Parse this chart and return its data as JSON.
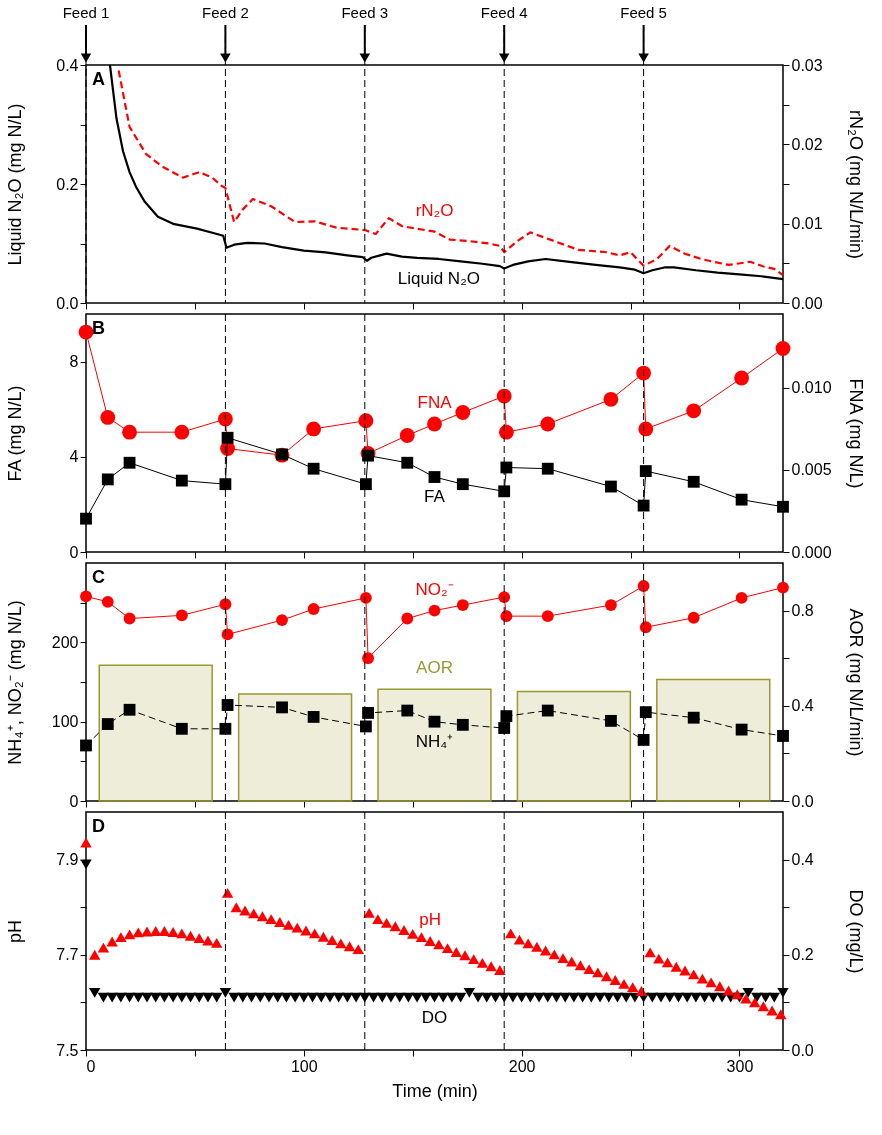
{
  "chart_data": [
    {
      "type": "line",
      "xlim": [
        0,
        320
      ],
      "xticks": [
        0,
        {
          "value": 50,
          "label": null
        },
        100,
        {
          "value": 150,
          "label": null
        },
        200,
        {
          "value": 250,
          "label": null
        },
        300
      ],
      "ylim": [
        0,
        0.4
      ],
      "yticks": [
        {
          "value": 0,
          "label": "0.0"
        },
        {
          "value": 0.1,
          "label": null
        },
        0.2,
        {
          "value": 0.3,
          "label": null
        },
        0.4
      ],
      "y2lim": [
        0,
        0.03
      ],
      "y2ticks": [
        {
          "value": 0,
          "label": "0.00"
        },
        {
          "value": 0.005,
          "label": null
        },
        0.01,
        {
          "value": 0.015,
          "label": null
        },
        0.02,
        {
          "value": 0.025,
          "label": null
        },
        0.03
      ],
      "ylabel": "Liquid N₂O (mg N/L)",
      "y2label": "rN₂O (mg N/L/min)",
      "tick_labels": "y",
      "grid": false,
      "series": [
        {
          "name": "Liquid N₂O",
          "color": "#000000",
          "line_style": "solid",
          "marker": "none",
          "x": [
            11,
            14,
            17,
            20,
            23,
            27,
            33,
            40,
            51,
            58,
            63,
            64.5,
            68,
            74,
            82,
            90,
            100,
            110,
            120,
            127,
            129,
            131,
            135,
            138,
            145,
            152,
            162,
            172,
            182,
            190,
            192,
            196,
            203,
            211,
            222,
            234,
            245,
            252,
            256,
            260,
            266,
            270,
            280,
            290,
            300,
            310,
            320
          ],
          "values": [
            0.4,
            0.31,
            0.255,
            0.22,
            0.195,
            0.17,
            0.145,
            0.133,
            0.125,
            0.118,
            0.113,
            0.093,
            0.098,
            0.101,
            0.1,
            0.094,
            0.088,
            0.085,
            0.08,
            0.077,
            0.071,
            0.076,
            0.08,
            0.083,
            0.078,
            0.076,
            0.074,
            0.07,
            0.066,
            0.062,
            0.058,
            0.064,
            0.07,
            0.074,
            0.069,
            0.064,
            0.06,
            0.056,
            0.05,
            0.055,
            0.06,
            0.06,
            0.055,
            0.051,
            0.048,
            0.045,
            0.04
          ]
        },
        {
          "name": "rN₂O",
          "axis": "y2",
          "color": "#ff0000",
          "line_style": "dashed",
          "marker": "none",
          "x": [
            15,
            20,
            27.5,
            35,
            44.5,
            52,
            58,
            62,
            64,
            68,
            72,
            76.6,
            85,
            96,
            105,
            115,
            128,
            133,
            139,
            145,
            151,
            160,
            167,
            176,
            185,
            190,
            192,
            198,
            204,
            215,
            226,
            239,
            245,
            250,
            256,
            262,
            268,
            275,
            283,
            295,
            305,
            311,
            316,
            320
          ],
          "values": [
            0.0293,
            0.0222,
            0.0188,
            0.0172,
            0.0158,
            0.0165,
            0.0158,
            0.0148,
            0.0145,
            0.0102,
            0.0118,
            0.0131,
            0.0122,
            0.0102,
            0.0103,
            0.0095,
            0.0092,
            0.0087,
            0.0107,
            0.0097,
            0.0094,
            0.009,
            0.008,
            0.0078,
            0.0075,
            0.0072,
            0.0064,
            0.0078,
            0.0089,
            0.0078,
            0.0067,
            0.0064,
            0.006,
            0.0064,
            0.0047,
            0.0055,
            0.0072,
            0.0062,
            0.0055,
            0.0048,
            0.0052,
            0.0046,
            0.0043,
            0.0035
          ]
        }
      ],
      "ref_lines": [
        {
          "axis": "x",
          "value": 0,
          "label": "Feed 1",
          "color": "#000000",
          "line_style": "dashed"
        },
        {
          "axis": "x",
          "value": 64,
          "label": "Feed 2",
          "color": "#000000",
          "line_style": "dashed"
        },
        {
          "axis": "x",
          "value": 128,
          "label": "Feed 3",
          "color": "#000000",
          "line_style": "dashed"
        },
        {
          "axis": "x",
          "value": 192,
          "label": "Feed 4",
          "color": "#000000",
          "line_style": "dashed"
        },
        {
          "axis": "x",
          "value": 256,
          "label": "Feed 5",
          "color": "#000000",
          "line_style": "dashed"
        }
      ],
      "annotations": [
        "A"
      ]
    },
    {
      "type": "line",
      "xlim": [
        0,
        320
      ],
      "xticks": [
        0,
        {
          "value": 50,
          "label": null
        },
        100,
        {
          "value": 150,
          "label": null
        },
        200,
        {
          "value": 250,
          "label": null
        },
        300
      ],
      "ylim": [
        0,
        10
      ],
      "yticks": [
        0,
        4,
        8
      ],
      "y2lim": [
        0,
        0.0145
      ],
      "y2ticks": [
        {
          "value": 0,
          "label": "0.000"
        },
        0.005,
        {
          "value": 0.01,
          "label": "0.010"
        }
      ],
      "ylabel": "FA (mg N/L)",
      "y2label": "FNA (mg N/L)",
      "tick_labels": "y",
      "grid": false,
      "x": [
        0,
        10,
        20,
        44,
        64,
        65,
        90,
        104.5,
        128.5,
        129.5,
        147.5,
        160,
        173,
        192,
        193,
        212,
        241,
        256,
        257,
        279,
        301,
        320
      ],
      "series": [
        {
          "name": "FA",
          "color": "#000000",
          "line_style": "solid",
          "marker": "square",
          "values": [
            1.4,
            3.05,
            3.75,
            3.0,
            2.85,
            4.8,
            4.1,
            3.5,
            2.85,
            4.05,
            3.75,
            3.15,
            2.85,
            2.55,
            3.55,
            3.5,
            2.75,
            1.95,
            3.4,
            2.95,
            2.2,
            1.9
          ]
        },
        {
          "name": "FNA",
          "axis": "y2",
          "color": "#ff0000",
          "line_style": "solid",
          "marker": "circle",
          "values": [
            0.0134,
            0.0082,
            0.0073,
            0.0073,
            0.0081,
            0.0063,
            0.0059,
            0.0075,
            0.008,
            0.006,
            0.0071,
            0.0078,
            0.0085,
            0.0095,
            0.0073,
            0.0078,
            0.0093,
            0.0109,
            0.0075,
            0.0086,
            0.0106,
            0.0124
          ]
        }
      ],
      "ref_lines": [
        {
          "axis": "x",
          "value": 64,
          "color": "#000000",
          "line_style": "dashed"
        },
        {
          "axis": "x",
          "value": 128,
          "color": "#000000",
          "line_style": "dashed"
        },
        {
          "axis": "x",
          "value": 192,
          "color": "#000000",
          "line_style": "dashed"
        },
        {
          "axis": "x",
          "value": 256,
          "color": "#000000",
          "line_style": "dashed"
        }
      ],
      "annotations": [
        "B"
      ]
    },
    {
      "type": "line",
      "xlim": [
        0,
        320
      ],
      "xticks": [
        0,
        {
          "value": 50,
          "label": null
        },
        100,
        {
          "value": 150,
          "label": null
        },
        200,
        {
          "value": 250,
          "label": null
        },
        300
      ],
      "ylim": [
        0,
        300
      ],
      "yticks": [
        0,
        {
          "value": 50,
          "label": null
        },
        100,
        {
          "value": 150,
          "label": null
        },
        200,
        {
          "value": 250,
          "label": null
        }
      ],
      "y2lim": [
        0,
        1
      ],
      "y2ticks": [
        {
          "value": 0,
          "label": "0.0"
        },
        {
          "value": 0.2,
          "label": null
        },
        0.4,
        {
          "value": 0.6,
          "label": null
        },
        0.8
      ],
      "ylabel": "NH₄⁺, NO₂⁻ (mg N/L)",
      "y2label": "AOR (mg N/L/min)",
      "tick_labels": "y",
      "grid": false,
      "x": [
        0,
        10,
        20,
        44,
        64,
        65,
        90,
        104.5,
        128.5,
        129.5,
        147.5,
        160,
        173,
        192,
        193,
        212,
        241,
        256,
        257,
        279,
        301,
        320
      ],
      "series": [
        {
          "type": "bar",
          "name": "AOR",
          "axis": "y2",
          "color": "#999933",
          "x": [
            32,
            96,
            160,
            224,
            288
          ],
          "values": [
            0.57,
            0.45,
            0.47,
            0.46,
            0.51
          ]
        },
        {
          "name": "NO₂⁻",
          "color": "#ff0000",
          "line_style": "solid",
          "marker": "circle",
          "values": [
            258,
            251,
            230,
            234,
            248,
            210,
            228,
            242,
            256,
            180,
            230,
            240,
            247,
            257,
            233,
            233,
            247,
            271,
            219,
            231,
            256,
            269
          ]
        },
        {
          "name": "NH₄⁺",
          "color": "#000000",
          "line_style": "dashed",
          "marker": "square",
          "values": [
            70,
            97,
            115,
            91,
            91,
            121,
            118,
            106,
            94,
            111,
            114,
            100,
            96,
            92,
            107,
            114,
            101,
            77,
            112,
            105,
            90,
            82
          ]
        }
      ],
      "ref_lines": [
        {
          "axis": "x",
          "value": 64,
          "color": "#000000",
          "line_style": "dashed"
        },
        {
          "axis": "x",
          "value": 128,
          "color": "#000000",
          "line_style": "dashed"
        },
        {
          "axis": "x",
          "value": 192,
          "color": "#000000",
          "line_style": "dashed"
        },
        {
          "axis": "x",
          "value": 256,
          "color": "#000000",
          "line_style": "dashed"
        }
      ],
      "annotations": [
        "C"
      ]
    },
    {
      "type": "scatter",
      "xlim": [
        0,
        320
      ],
      "xticks": [
        0,
        {
          "value": 50,
          "label": null
        },
        100,
        {
          "value": 150,
          "label": null
        },
        200,
        {
          "value": 250,
          "label": null
        },
        300
      ],
      "ylim": [
        7.5,
        8.0
      ],
      "yticks": [
        7.5,
        {
          "value": 7.6,
          "label": null
        },
        7.7,
        {
          "value": 7.8,
          "label": null
        },
        7.9
      ],
      "y2lim": [
        0,
        0.5
      ],
      "y2ticks": [
        {
          "value": 0,
          "label": "0.0"
        },
        {
          "value": 0.1,
          "label": null
        },
        0.2,
        {
          "value": 0.3,
          "label": null
        },
        0.4
      ],
      "xlabel": "Time (min)",
      "ylabel": "pH",
      "y2label": "DO (mg/L)",
      "grid": false,
      "series": [
        {
          "name": "pH",
          "color": "#ff0000",
          "marker": "triangle",
          "x": [
            0,
            4,
            8,
            12,
            16,
            20,
            24,
            28,
            32,
            36,
            40,
            44,
            48,
            52,
            56,
            60,
            65,
            69,
            73,
            77,
            81,
            85,
            89,
            93,
            97,
            101,
            105,
            109,
            113,
            117,
            121,
            125,
            130,
            134,
            138,
            142,
            146,
            150,
            154,
            158,
            162,
            166,
            170,
            174,
            178,
            182,
            186,
            190,
            195,
            199,
            203,
            207,
            211,
            215,
            219,
            223,
            227,
            231,
            235,
            239,
            243,
            247,
            251,
            255,
            259,
            263,
            267,
            271,
            275,
            279,
            283,
            287,
            291,
            295,
            299,
            303,
            307,
            311,
            315,
            319
          ],
          "values": [
            7.936,
            7.7,
            7.715,
            7.728,
            7.737,
            7.743,
            7.747,
            7.749,
            7.75,
            7.75,
            7.748,
            7.745,
            7.74,
            7.735,
            7.73,
            7.725,
            7.83,
            7.8,
            7.793,
            7.787,
            7.781,
            7.775,
            7.769,
            7.763,
            7.757,
            7.751,
            7.745,
            7.738,
            7.731,
            7.724,
            7.718,
            7.712,
            7.788,
            7.775,
            7.767,
            7.76,
            7.752,
            7.744,
            7.737,
            7.729,
            7.722,
            7.714,
            7.706,
            7.699,
            7.691,
            7.683,
            7.676,
            7.668,
            7.745,
            7.732,
            7.724,
            7.717,
            7.709,
            7.701,
            7.693,
            7.686,
            7.678,
            7.67,
            7.663,
            7.655,
            7.647,
            7.639,
            7.632,
            7.624,
            7.705,
            7.692,
            7.684,
            7.675,
            7.667,
            7.659,
            7.65,
            7.642,
            7.634,
            7.625,
            7.617,
            7.608,
            7.6,
            7.592,
            7.583,
            7.575
          ]
        },
        {
          "name": "DO",
          "axis": "y2",
          "color": "#000000",
          "marker": "triangle-down",
          "x": [
            0,
            4,
            8,
            12,
            16,
            20,
            24,
            28,
            32,
            36,
            40,
            44,
            48,
            52,
            56,
            60,
            64,
            68,
            72,
            76,
            80,
            84,
            88,
            92,
            96,
            100,
            104,
            108,
            112,
            116,
            120,
            124,
            128,
            132,
            136,
            140,
            144,
            148,
            152,
            156,
            160,
            164,
            168,
            172,
            176,
            180,
            184,
            188,
            192,
            196,
            200,
            204,
            208,
            212,
            216,
            220,
            224,
            228,
            232,
            236,
            240,
            244,
            248,
            252,
            256,
            260,
            264,
            268,
            272,
            276,
            280,
            284,
            288,
            292,
            296,
            300,
            304,
            308,
            312,
            316,
            320
          ],
          "values": [
            0.39,
            0.12,
            0.11,
            0.11,
            0.11,
            0.11,
            0.11,
            0.11,
            0.11,
            0.11,
            0.11,
            0.11,
            0.11,
            0.11,
            0.11,
            0.11,
            0.12,
            0.11,
            0.11,
            0.11,
            0.11,
            0.11,
            0.11,
            0.11,
            0.11,
            0.11,
            0.11,
            0.11,
            0.11,
            0.11,
            0.11,
            0.11,
            0.11,
            0.11,
            0.11,
            0.11,
            0.11,
            0.11,
            0.11,
            0.11,
            0.11,
            0.11,
            0.11,
            0.11,
            0.12,
            0.11,
            0.11,
            0.11,
            0.11,
            0.11,
            0.11,
            0.11,
            0.11,
            0.11,
            0.11,
            0.11,
            0.11,
            0.11,
            0.11,
            0.11,
            0.11,
            0.11,
            0.11,
            0.11,
            0.11,
            0.11,
            0.11,
            0.11,
            0.11,
            0.11,
            0.11,
            0.11,
            0.11,
            0.11,
            0.11,
            0.11,
            0.12,
            0.11,
            0.11,
            0.11,
            0.12
          ]
        }
      ],
      "ref_lines": [
        {
          "axis": "x",
          "value": 64,
          "color": "#000000",
          "line_style": "dashed"
        },
        {
          "axis": "x",
          "value": 128,
          "color": "#000000",
          "line_style": "dashed"
        },
        {
          "axis": "x",
          "value": 192,
          "color": "#000000",
          "line_style": "dashed"
        },
        {
          "axis": "x",
          "value": 256,
          "color": "#000000",
          "line_style": "dashed"
        }
      ],
      "annotations": [
        "D"
      ]
    }
  ]
}
